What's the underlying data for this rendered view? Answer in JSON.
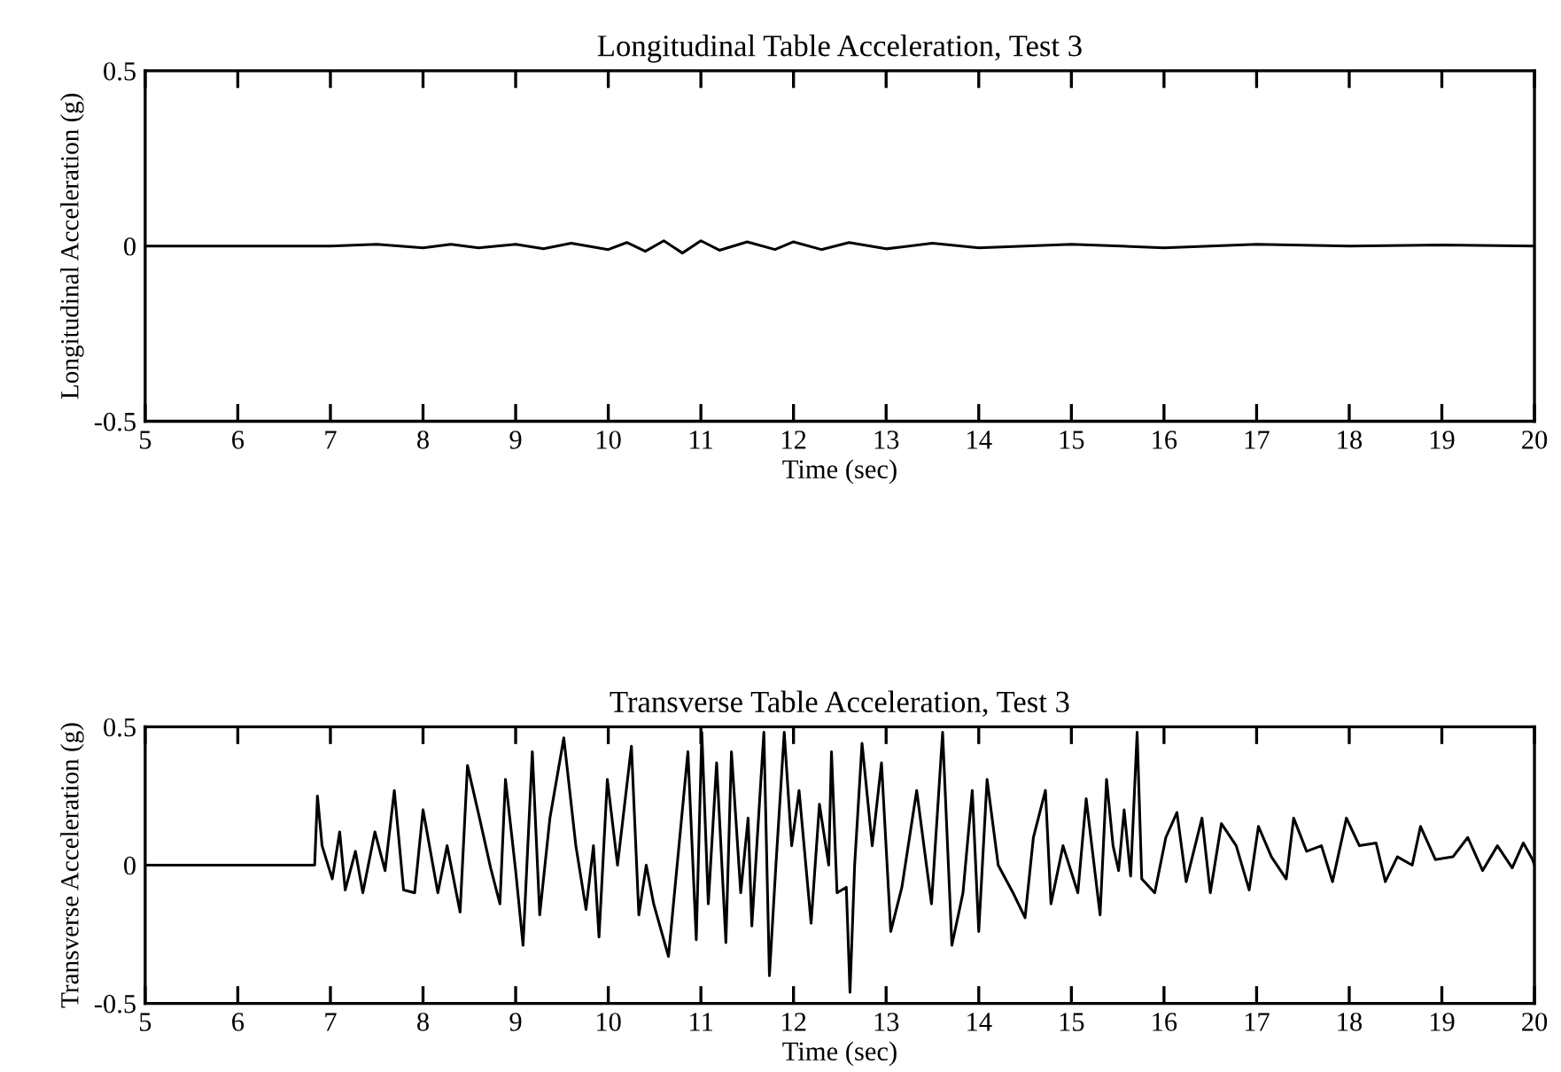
{
  "chart_data": [
    {
      "type": "line",
      "title": "Longitudinal Table Acceleration, Test 3",
      "xlabel": "Time (sec)",
      "ylabel": "Longitudinal Acceleration (g)",
      "series": [
        {
          "color": "#000000",
          "x": [
            5,
            6,
            7,
            7.5,
            8,
            8.3,
            8.6,
            9,
            9.3,
            9.6,
            10,
            10.2,
            10.4,
            10.6,
            10.8,
            11,
            11.2,
            11.5,
            11.8,
            12,
            12.3,
            12.6,
            13,
            13.5,
            14,
            15,
            16,
            17,
            18,
            19,
            20
          ],
          "values": [
            0,
            0,
            0,
            0.005,
            -0.005,
            0.005,
            -0.005,
            0.005,
            -0.008,
            0.008,
            -0.01,
            0.01,
            -0.015,
            0.015,
            -0.02,
            0.015,
            -0.012,
            0.012,
            -0.01,
            0.012,
            -0.01,
            0.01,
            -0.008,
            0.008,
            -0.005,
            0.005,
            -0.005,
            0.005,
            0,
            0.003,
            0
          ]
        }
      ],
      "xlim": [
        5,
        20
      ],
      "ylim": [
        -0.5,
        0.5
      ],
      "xticks": [
        5,
        6,
        7,
        8,
        9,
        10,
        11,
        12,
        13,
        14,
        15,
        16,
        17,
        18,
        19,
        20
      ],
      "yticks": [
        -0.5,
        0,
        0.5
      ],
      "grid": false,
      "legend": false
    },
    {
      "type": "line",
      "title": "Transverse Table Acceleration, Test 3",
      "xlabel": "Time (sec)",
      "ylabel": "Transverse Acceleration (g)",
      "series": [
        {
          "color": "#000000",
          "x": [
            5,
            6.83,
            6.86,
            6.91,
            7.02,
            7.1,
            7.16,
            7.27,
            7.35,
            7.48,
            7.59,
            7.69,
            7.79,
            7.91,
            8.0,
            8.16,
            8.26,
            8.4,
            8.48,
            8.61,
            8.73,
            8.83,
            8.89,
            9.0,
            9.08,
            9.18,
            9.26,
            9.37,
            9.52,
            9.65,
            9.76,
            9.84,
            9.9,
            9.99,
            10.1,
            10.25,
            10.33,
            10.41,
            10.49,
            10.65,
            10.86,
            10.95,
            11.01,
            11.08,
            11.17,
            11.27,
            11.33,
            11.43,
            11.51,
            11.55,
            11.68,
            11.74,
            11.81,
            11.9,
            11.98,
            12.06,
            12.19,
            12.28,
            12.38,
            12.41,
            12.47,
            12.57,
            12.61,
            12.66,
            12.74,
            12.85,
            12.95,
            13.05,
            13.17,
            13.33,
            13.49,
            13.61,
            13.71,
            13.83,
            13.93,
            14.0,
            14.09,
            14.21,
            14.37,
            14.5,
            14.59,
            14.72,
            14.78,
            14.91,
            15.07,
            15.16,
            15.31,
            15.38,
            15.45,
            15.51,
            15.57,
            15.64,
            15.71,
            15.76,
            15.9,
            16.02,
            16.14,
            16.24,
            16.41,
            16.5,
            16.62,
            16.78,
            16.92,
            17.02,
            17.16,
            17.32,
            17.4,
            17.54,
            17.7,
            17.82,
            17.97,
            18.11,
            18.29,
            18.39,
            18.52,
            18.68,
            18.77,
            18.93,
            19.12,
            19.28,
            19.44,
            19.6,
            19.76,
            19.88,
            19.98,
            20
          ],
          "values": [
            0,
            0,
            0.25,
            0.07,
            -0.05,
            0.12,
            -0.09,
            0.05,
            -0.1,
            0.12,
            -0.02,
            0.27,
            -0.09,
            -0.1,
            0.2,
            -0.1,
            0.07,
            -0.17,
            0.36,
            0.17,
            -0.01,
            -0.14,
            0.31,
            -0.02,
            -0.29,
            0.41,
            -0.18,
            0.17,
            0.46,
            0.07,
            -0.16,
            0.07,
            -0.26,
            0.31,
            0,
            0.43,
            -0.18,
            0,
            -0.14,
            -0.33,
            0.41,
            -0.27,
            0.48,
            -0.14,
            0.37,
            -0.28,
            0.41,
            -0.1,
            0.17,
            -0.22,
            0.48,
            -0.4,
            0,
            0.48,
            0.07,
            0.27,
            -0.21,
            0.22,
            0,
            0.41,
            -0.1,
            -0.08,
            -0.46,
            0,
            0.44,
            0.07,
            0.37,
            -0.24,
            -0.08,
            0.27,
            -0.14,
            0.48,
            -0.29,
            -0.1,
            0.27,
            -0.24,
            0.31,
            0,
            -0.1,
            -0.19,
            0.1,
            0.27,
            -0.14,
            0.07,
            -0.1,
            0.24,
            -0.18,
            0.31,
            0.07,
            -0.02,
            0.2,
            -0.04,
            0.48,
            -0.05,
            -0.1,
            0.1,
            0.19,
            -0.06,
            0.17,
            -0.1,
            0.15,
            0.07,
            -0.09,
            0.14,
            0.03,
            -0.05,
            0.17,
            0.05,
            0.07,
            -0.06,
            0.17,
            0.07,
            0.08,
            -0.06,
            0.03,
            0,
            0.14,
            0.02,
            0.03,
            0.1,
            -0.02,
            0.07,
            -0.01,
            0.08,
            0.02,
            0
          ]
        }
      ],
      "xlim": [
        5,
        20
      ],
      "ylim": [
        -0.5,
        0.5
      ],
      "xticks": [
        5,
        6,
        7,
        8,
        9,
        10,
        11,
        12,
        13,
        14,
        15,
        16,
        17,
        18,
        19,
        20
      ],
      "yticks": [
        -0.5,
        0,
        0.5
      ],
      "grid": false,
      "legend": false
    }
  ]
}
